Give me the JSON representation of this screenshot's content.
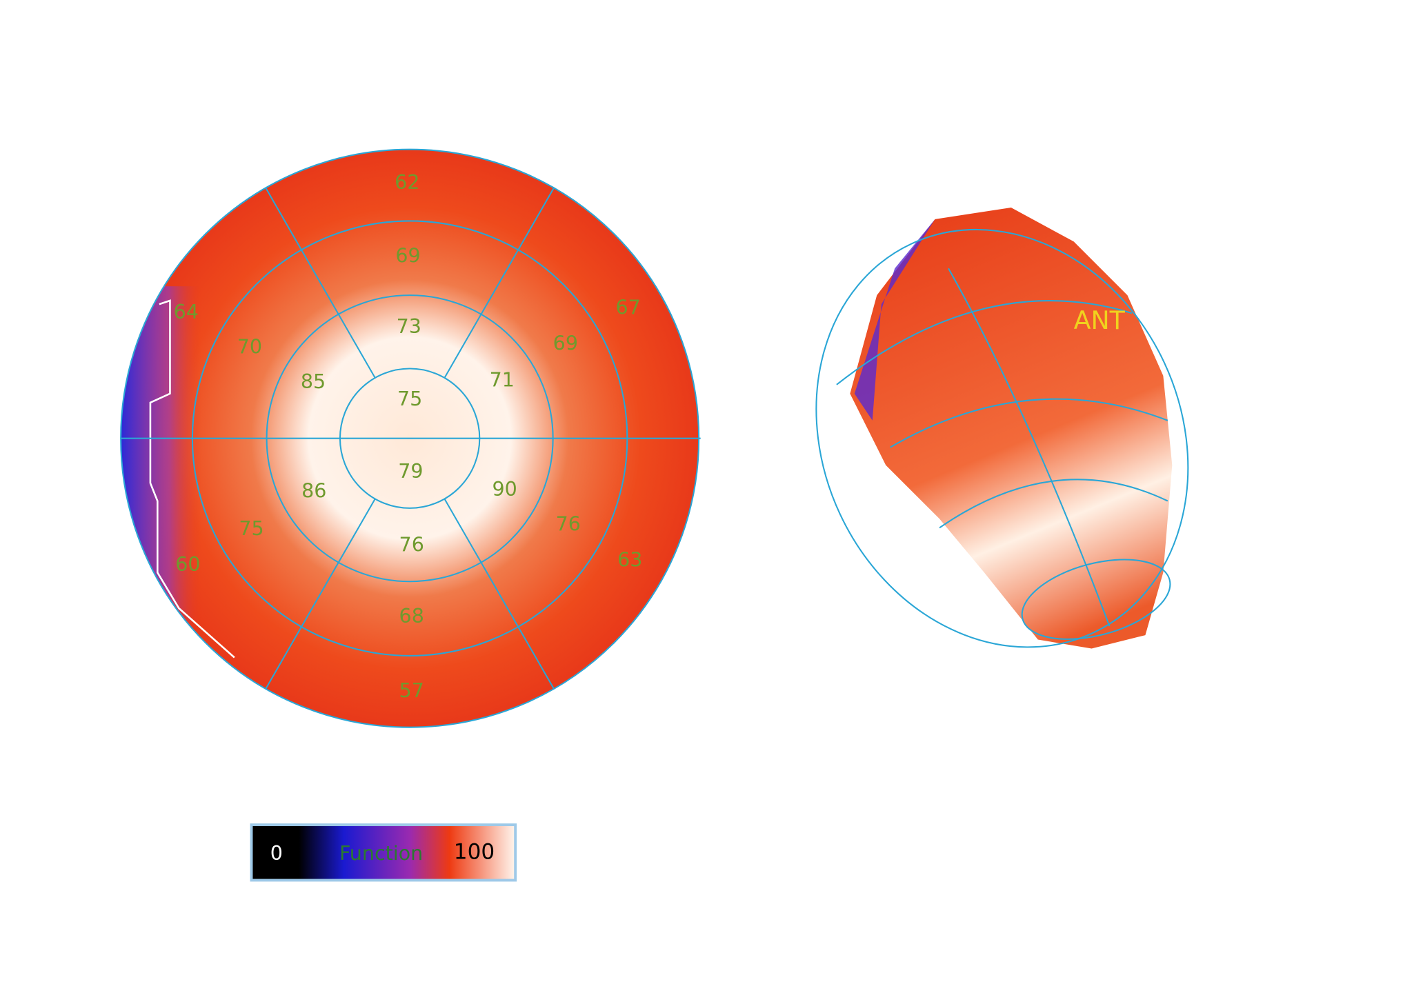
{
  "polar_map": {
    "segments": [
      62,
      69,
      73,
      75,
      79,
      76,
      68,
      57,
      64,
      70,
      85,
      86,
      75,
      60,
      67,
      69,
      71,
      90,
      76,
      63
    ]
  },
  "surface_view": {
    "label": "ANT"
  },
  "color_bar": {
    "min_label": "0",
    "title": "Function",
    "max_label": "100"
  }
}
